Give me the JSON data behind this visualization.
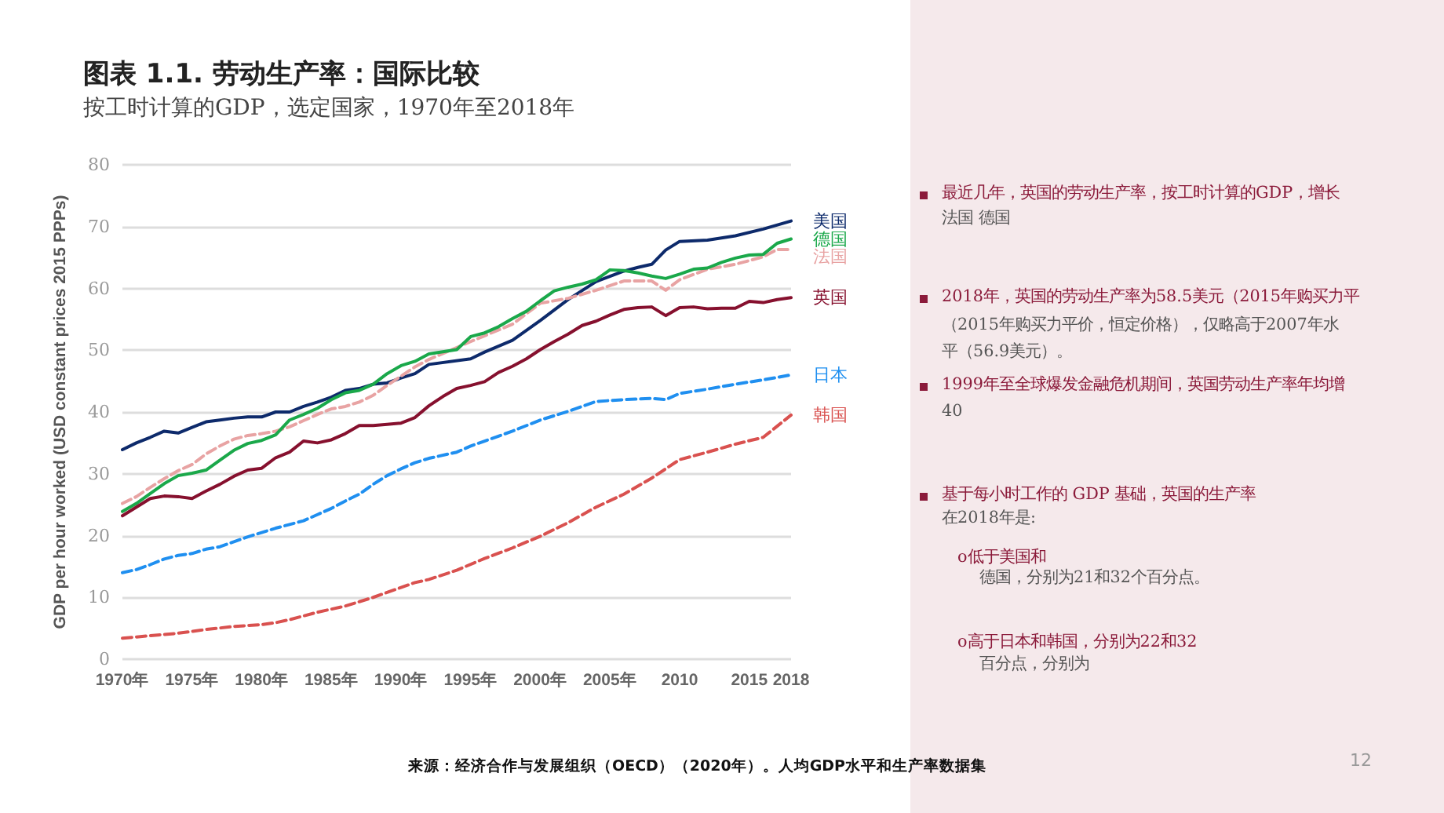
{
  "chart_data": {
    "type": "line",
    "title": "图表 1.1. 劳动生产率：国际比较",
    "subtitle": "按工时计算的GDP，选定国家，1970年至2018年",
    "ylabel": "GDP per hour worked (USD constant prices 2015 PPPs)",
    "xlim": [
      1970,
      2018
    ],
    "xticks": [
      {
        "value": 1970,
        "label": "1970年"
      },
      {
        "value": 1975,
        "label": "1975年"
      },
      {
        "value": 1980,
        "label": "1980年"
      },
      {
        "value": 1985,
        "label": "1985年"
      },
      {
        "value": 1990,
        "label": "1990年"
      },
      {
        "value": 1995,
        "label": "1995年"
      },
      {
        "value": 2000,
        "label": "2000年"
      },
      {
        "value": 2005,
        "label": "2005年"
      },
      2010,
      2015,
      2018
    ],
    "ylim": [
      0,
      80
    ],
    "yticks": [
      0,
      10,
      20,
      30,
      40,
      50,
      60,
      70,
      80
    ],
    "grid": "y",
    "legend": false,
    "marker": "none",
    "series": [
      {
        "name": "美国",
        "color": "#0d2a6b",
        "line_style": "solid",
        "x": [
          1970,
          1971,
          1972,
          1973,
          1974,
          1975,
          1976,
          1977,
          1978,
          1979,
          1980,
          1981,
          1982,
          1983,
          1984,
          1985,
          1986,
          1987,
          1988,
          1989,
          1990,
          1991,
          1992,
          1995,
          1996,
          1998,
          2000,
          2002,
          2004,
          2006,
          2007,
          2008,
          2009,
          2010,
          2012,
          2014,
          2016,
          2018
        ],
        "values": [
          33.9,
          35,
          35.9,
          36.9,
          36.6,
          37.5,
          38.4,
          38.7,
          39,
          39.2,
          39.2,
          40,
          40,
          40.9,
          41.6,
          42.4,
          43.5,
          43.8,
          44.5,
          44.7,
          45.5,
          46.2,
          47.7,
          48.6,
          49.7,
          51.6,
          54.8,
          58.2,
          61.1,
          62.8,
          63.4,
          63.9,
          66.2,
          67.6,
          67.8,
          68.5,
          69.6,
          70.9
        ]
      },
      {
        "name": "法国",
        "color": "#e8a3a3",
        "line_style": "dashed",
        "x": [
          1970,
          1971,
          1972,
          1973,
          1974,
          1975,
          1976,
          1977,
          1978,
          1979,
          1980,
          1981,
          1982,
          1983,
          1984,
          1985,
          1986,
          1987,
          1988,
          1989,
          1990,
          1991,
          1992,
          1995,
          1998,
          2000,
          2002,
          2004,
          2006,
          2008,
          2009,
          2010,
          2012,
          2014,
          2016,
          2017,
          2018
        ],
        "values": [
          25.2,
          26.3,
          27.8,
          29.2,
          30.5,
          31.5,
          33.2,
          34.5,
          35.6,
          36.2,
          36.5,
          36.9,
          37.6,
          38.6,
          39.6,
          40.5,
          40.9,
          41.6,
          42.7,
          44.3,
          45.8,
          47.3,
          48.5,
          51.4,
          54.2,
          57.6,
          58.4,
          59.7,
          61.2,
          61.2,
          59.7,
          61.4,
          63.1,
          63.9,
          65.1,
          66.3,
          66.3
        ]
      },
      {
        "name": "德国",
        "color": "#1aa84a",
        "line_style": "solid",
        "x": [
          1970,
          1971,
          1972,
          1973,
          1974,
          1975,
          1976,
          1977,
          1978,
          1979,
          1980,
          1981,
          1982,
          1983,
          1984,
          1985,
          1986,
          1987,
          1988,
          1989,
          1990,
          1991,
          1992,
          1994,
          1995,
          1996,
          1997,
          1998,
          1999,
          2000,
          2001,
          2002,
          2003,
          2004,
          2005,
          2006,
          2007,
          2008,
          2009,
          2010,
          2011,
          2012,
          2013,
          2014,
          2015,
          2016,
          2017,
          2018
        ],
        "values": [
          23.9,
          25.2,
          26.8,
          28.4,
          29.7,
          30.1,
          30.6,
          32.2,
          33.8,
          34.9,
          35.4,
          36.3,
          38.7,
          39.6,
          40.6,
          42,
          43.1,
          43.5,
          44.5,
          46.2,
          47.5,
          48.2,
          49.4,
          50.1,
          52.2,
          52.8,
          53.8,
          55.1,
          56.3,
          58,
          59.6,
          60.2,
          60.7,
          61.4,
          63,
          62.9,
          62.5,
          62,
          61.6,
          62.3,
          63.1,
          63.3,
          64.2,
          64.9,
          65.4,
          65.5,
          67.3,
          68
        ]
      },
      {
        "name": "英国",
        "color": "#86102e",
        "line_style": "solid",
        "x": [
          1970,
          1971,
          1972,
          1973,
          1974,
          1975,
          1976,
          1977,
          1978,
          1979,
          1980,
          1981,
          1982,
          1983,
          1984,
          1985,
          1986,
          1987,
          1988,
          1989,
          1990,
          1991,
          1992,
          1993,
          1994,
          1995,
          1996,
          1997,
          1998,
          1999,
          2000,
          2001,
          2002,
          2003,
          2004,
          2005,
          2006,
          2007,
          2008,
          2009,
          2010,
          2011,
          2012,
          2013,
          2014,
          2015,
          2016,
          2017,
          2018
        ],
        "values": [
          23.2,
          24.6,
          26,
          26.4,
          26.3,
          26,
          27.2,
          28.3,
          29.6,
          30.6,
          30.9,
          32.6,
          33.5,
          35.3,
          35,
          35.5,
          36.5,
          37.8,
          37.8,
          38,
          38.2,
          39.1,
          41,
          42.5,
          43.8,
          44.3,
          44.9,
          46.4,
          47.4,
          48.6,
          50.1,
          51.4,
          52.6,
          54,
          54.7,
          55.7,
          56.6,
          56.9,
          57,
          55.6,
          56.9,
          57,
          56.7,
          56.8,
          56.8,
          57.9,
          57.7,
          58.2,
          58.5
        ]
      },
      {
        "name": "日本",
        "color": "#1f8ff0",
        "line_style": "dashed",
        "x": [
          1970,
          1971,
          1972,
          1973,
          1974,
          1975,
          1976,
          1977,
          1978,
          1979,
          1980,
          1981,
          1982,
          1983,
          1984,
          1985,
          1986,
          1987,
          1988,
          1989,
          1990,
          1991,
          1992,
          1994,
          1995,
          1996,
          1998,
          2000,
          2002,
          2004,
          2006,
          2008,
          2009,
          2010,
          2012,
          2014,
          2016,
          2018
        ],
        "values": [
          14,
          14.5,
          15.3,
          16.2,
          16.8,
          17.1,
          17.8,
          18.2,
          19,
          19.8,
          20.5,
          21.2,
          21.8,
          22.4,
          23.4,
          24.4,
          25.6,
          26.7,
          28.3,
          29.7,
          30.8,
          31.8,
          32.5,
          33.5,
          34.5,
          35.3,
          36.9,
          38.7,
          40.1,
          41.7,
          42,
          42.2,
          42,
          43,
          43.7,
          44.5,
          45.2,
          46
        ]
      },
      {
        "name": "韩国",
        "color": "#d9514f",
        "line_style": "dashed",
        "x": [
          1970,
          1972,
          1974,
          1976,
          1978,
          1980,
          1981,
          1982,
          1983,
          1984,
          1985,
          1986,
          1987,
          1988,
          1989,
          1990,
          1991,
          1992,
          1994,
          1996,
          1998,
          2000,
          2002,
          2004,
          2006,
          2008,
          2010,
          2012,
          2014,
          2016,
          2018
        ],
        "values": [
          3.4,
          3.8,
          4.2,
          4.8,
          5.3,
          5.6,
          5.9,
          6.4,
          7,
          7.6,
          8.1,
          8.6,
          9.3,
          10,
          10.8,
          11.6,
          12.4,
          12.9,
          14.4,
          16.3,
          18,
          19.9,
          22.1,
          24.6,
          26.7,
          29.3,
          32.3,
          33.5,
          34.8,
          35.9,
          39.5
        ]
      }
    ],
    "annotations": [
      "最近几年，英国的劳动生产率，按工时计算的GDP，增长",
      "法国 德国",
      "2018年，英国的劳动生产率为58.5美元（2015年购买力平",
      "（2015年购买力平价，恒定价格），仅略高于2007年水",
      "平（56.9美元）。",
      "1999年至全球爆发金融危机期间，英国劳动生产率年均增",
      "40",
      "基于每小时工作的 GDP 基础，英国的生产率",
      "在2018年是:",
      "o低于美国和",
      "德国，分别为21和32个百分点。",
      "o高于日本和韩国，分别为22和32",
      "百分点，分别为",
      "来源：经济合作与发展组织（OECD）（2020年）。人均GDP水平和生产率数据集",
      "12"
    ]
  }
}
